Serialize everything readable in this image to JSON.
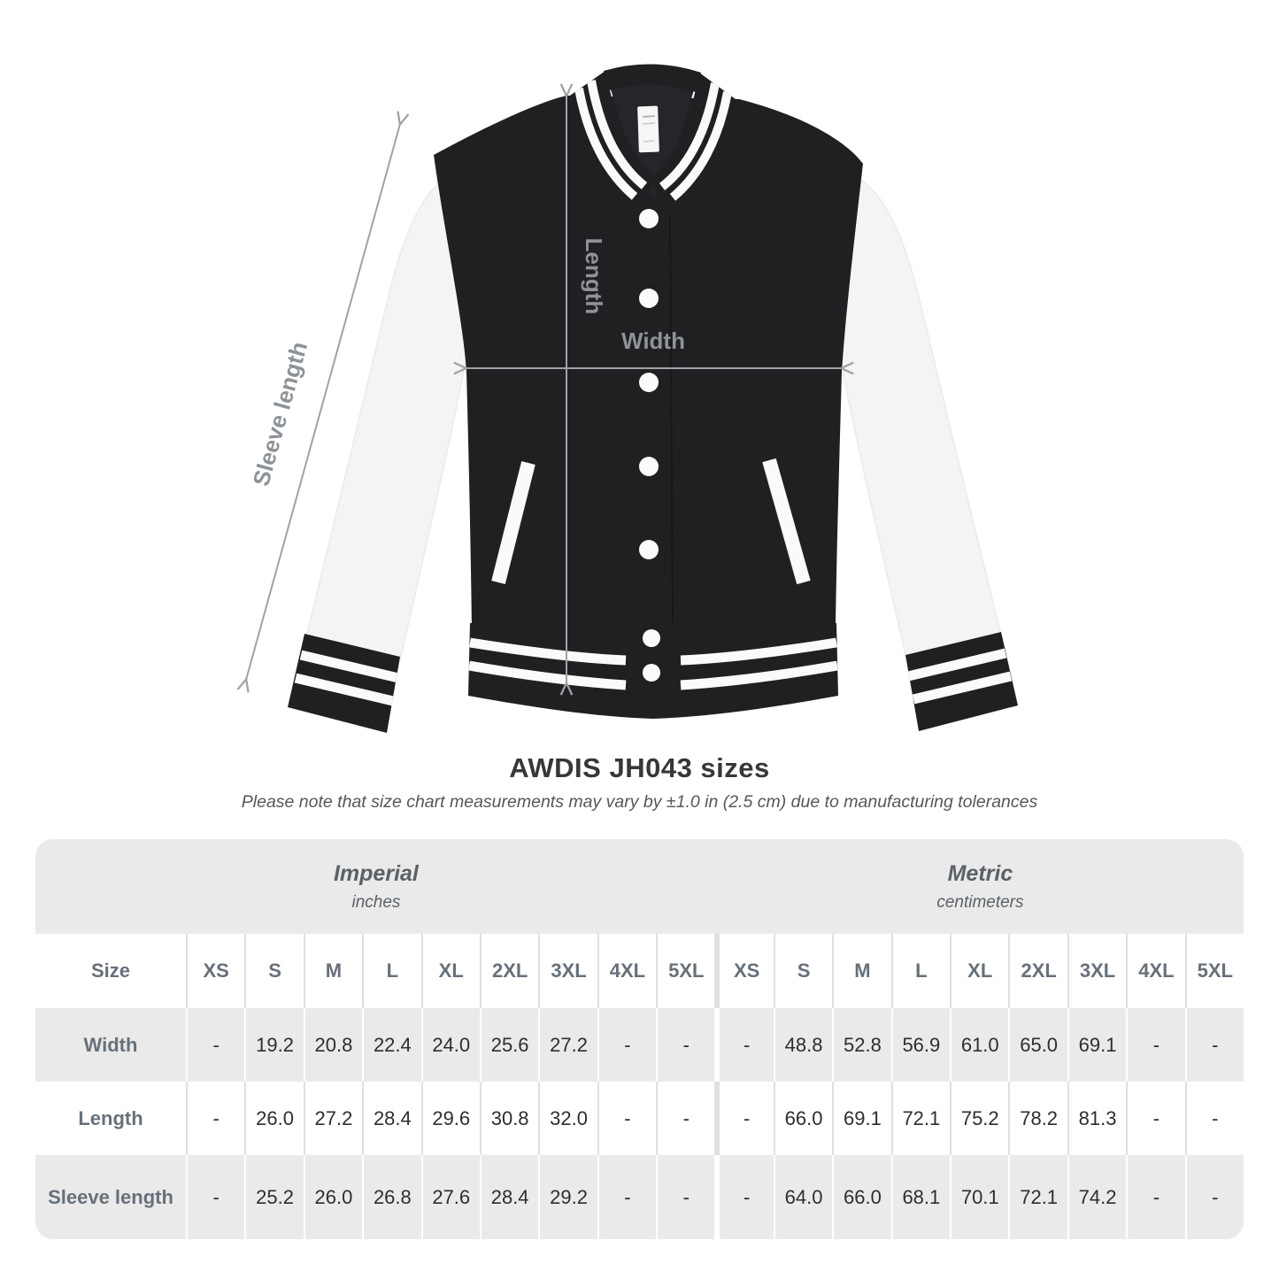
{
  "diagram": {
    "labels": {
      "sleeve_length": "Sleeve length",
      "length": "Length",
      "width": "Width"
    },
    "colors": {
      "jacket_body": "#202023",
      "sleeve": "#f4f4f4",
      "stripe": "#fafafa",
      "dimension_line": "#9fa3a6",
      "dimension_text": "#8e9398"
    }
  },
  "title": "AWDIS JH043 sizes",
  "note": "Please note that size chart measurements may vary by ±1.0 in (2.5 cm) due to manufacturing tolerances",
  "table": {
    "unit_groups": [
      {
        "label": "Imperial",
        "sublabel": "inches"
      },
      {
        "label": "Metric",
        "sublabel": "centimeters"
      }
    ],
    "size_col_header": "Size",
    "sizes": [
      "XS",
      "S",
      "M",
      "L",
      "XL",
      "2XL",
      "3XL",
      "4XL",
      "5XL"
    ],
    "rows": [
      {
        "label": "Width",
        "imperial": [
          "-",
          "19.2",
          "20.8",
          "22.4",
          "24.0",
          "25.6",
          "27.2",
          "-",
          "-"
        ],
        "metric": [
          "-",
          "48.8",
          "52.8",
          "56.9",
          "61.0",
          "65.0",
          "69.1",
          "-",
          "-"
        ]
      },
      {
        "label": "Length",
        "imperial": [
          "-",
          "26.0",
          "27.2",
          "28.4",
          "29.6",
          "30.8",
          "32.0",
          "-",
          "-"
        ],
        "metric": [
          "-",
          "66.0",
          "69.1",
          "72.1",
          "75.2",
          "78.2",
          "81.3",
          "-",
          "-"
        ]
      },
      {
        "label": "Sleeve length",
        "imperial": [
          "-",
          "25.2",
          "26.0",
          "26.8",
          "27.6",
          "28.4",
          "29.2",
          "-",
          "-"
        ],
        "metric": [
          "-",
          "64.0",
          "66.0",
          "68.1",
          "70.1",
          "72.1",
          "74.2",
          "-",
          "-"
        ]
      }
    ]
  }
}
